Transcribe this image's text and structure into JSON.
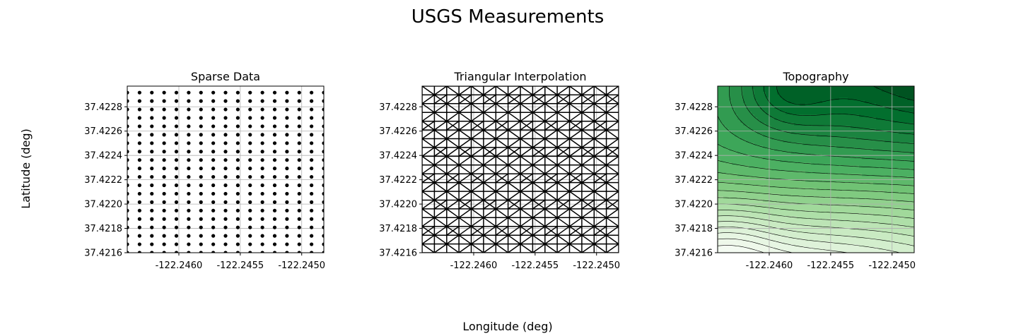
{
  "figure": {
    "suptitle": "USGS Measurements",
    "xlabel": "Longitude (deg)",
    "ylabel": "Latitude (deg)"
  },
  "chart_data": [
    {
      "type": "scatter",
      "title": "Sparse Data",
      "xlim": [
        -122.24642,
        -122.24482
      ],
      "ylim": [
        37.4216,
        37.42297
      ],
      "x_ticks": [
        -122.246,
        -122.2455,
        -122.245
      ],
      "x_tick_labels": [
        "-122.2460",
        "-122.2455",
        "-122.2450"
      ],
      "y_ticks": [
        37.4216,
        37.4218,
        37.422,
        37.4222,
        37.4224,
        37.4226,
        37.4228
      ],
      "y_tick_labels": [
        "37.4216",
        "37.4218",
        "37.4220",
        "37.4222",
        "37.4224",
        "37.4226",
        "37.4228"
      ],
      "grid": true,
      "points": {
        "x_start": -122.24642,
        "x_step": 0.0001,
        "x_count": 17,
        "y_start": 37.4216,
        "y_step": 6.93e-05,
        "y_count": 20
      },
      "marker_color": "#000000"
    },
    {
      "type": "triangulation",
      "title": "Triangular Interpolation",
      "xlim": [
        -122.24642,
        -122.24482
      ],
      "ylim": [
        37.4216,
        37.42297
      ],
      "x_ticks": [
        -122.246,
        -122.2455,
        -122.245
      ],
      "x_tick_labels": [
        "-122.2460",
        "-122.2455",
        "-122.2450"
      ],
      "y_ticks": [
        37.4216,
        37.4218,
        37.422,
        37.4222,
        37.4224,
        37.4226,
        37.4228
      ],
      "y_tick_labels": [
        "37.4216",
        "37.4218",
        "37.4220",
        "37.4222",
        "37.4224",
        "37.4226",
        "37.4228"
      ],
      "grid": true,
      "mesh": {
        "x_cells": 16,
        "y_cells": 19
      },
      "line_color": "#000000"
    },
    {
      "type": "contour",
      "title": "Topography",
      "xlim": [
        -122.24642,
        -122.24482
      ],
      "ylim": [
        37.4216,
        37.42297
      ],
      "x_ticks": [
        -122.246,
        -122.2455,
        -122.245
      ],
      "x_tick_labels": [
        "-122.2460",
        "-122.2455",
        "-122.2450"
      ],
      "y_ticks": [
        37.4216,
        37.4218,
        37.422,
        37.4222,
        37.4224,
        37.4226,
        37.4228
      ],
      "y_tick_labels": [
        "37.4216",
        "37.4218",
        "37.4220",
        "37.4222",
        "37.4224",
        "37.4226",
        "37.4228"
      ],
      "grid": true,
      "colormap": "Greens",
      "colormap_stops": [
        "#f7fcf5",
        "#e5f5e0",
        "#c7e9c0",
        "#a1d99b",
        "#74c476",
        "#41ab5d",
        "#238b45",
        "#006d2c",
        "#00441b"
      ],
      "levels": 22,
      "contour_line_color": "#000000"
    }
  ]
}
